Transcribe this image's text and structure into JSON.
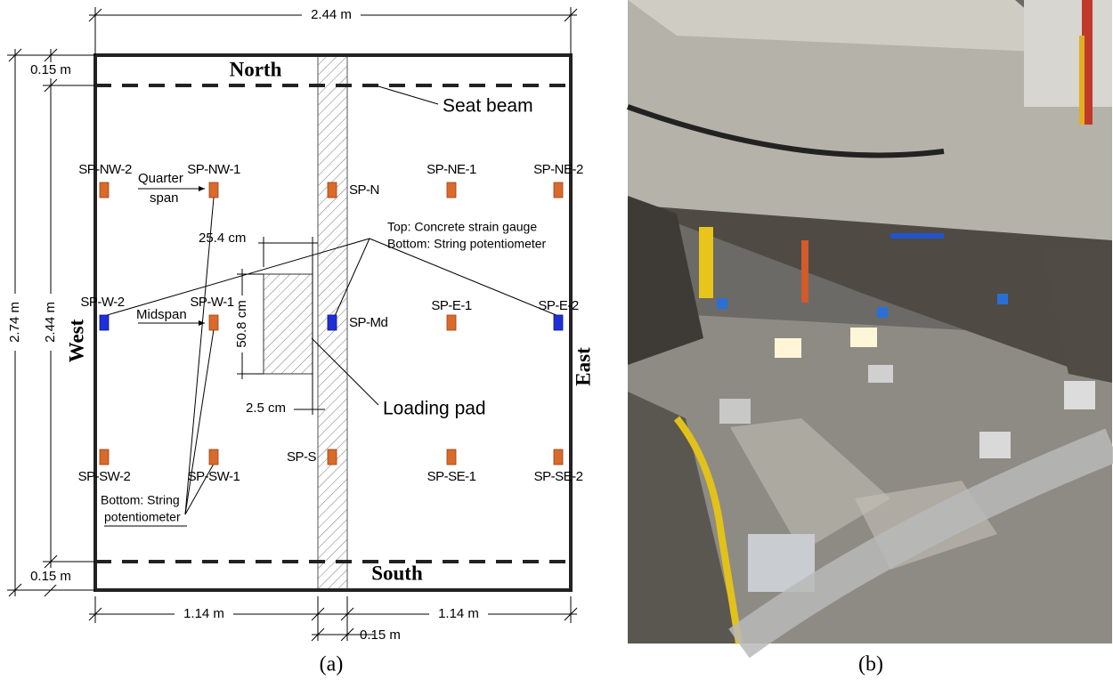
{
  "dimensions": {
    "overall_width": "2.44 m",
    "overall_length": "2.74 m",
    "inner_length": "2.44 m",
    "end_north": "0.15 m",
    "end_south": "0.15 m",
    "span_left": "1.14 m",
    "span_right": "1.14 m",
    "strip_width": "0.15 m",
    "pad_offset": "25.4 cm",
    "pad_length": "50.8 cm",
    "pad_gap": "2.5 cm"
  },
  "directions": {
    "north": "North",
    "south": "South",
    "west": "West",
    "east": "East"
  },
  "sensors": [
    "SP-NW-2",
    "SP-NW-1",
    "SP-N",
    "SP-NE-1",
    "SP-NE-2",
    "SP-W-2",
    "SP-W-1",
    "SP-Md",
    "SP-E-1",
    "SP-E-2",
    "SP-SW-2",
    "SP-SW-1",
    "SP-S",
    "SP-SE-1",
    "SP-SE-2"
  ],
  "annotations": {
    "quarter_1": "Quarter",
    "quarter_2": "span",
    "midspan": "Midspan",
    "seat_beam": "Seat beam",
    "legend_top": "Top: Concrete strain gauge",
    "legend_bottom": "Bottom: String potentiometer",
    "loading_pad": "Loading pad",
    "bottom_sp_1": "Bottom: String",
    "bottom_sp_2": "potentiometer"
  },
  "captions": [
    "(a)",
    "(b)"
  ]
}
